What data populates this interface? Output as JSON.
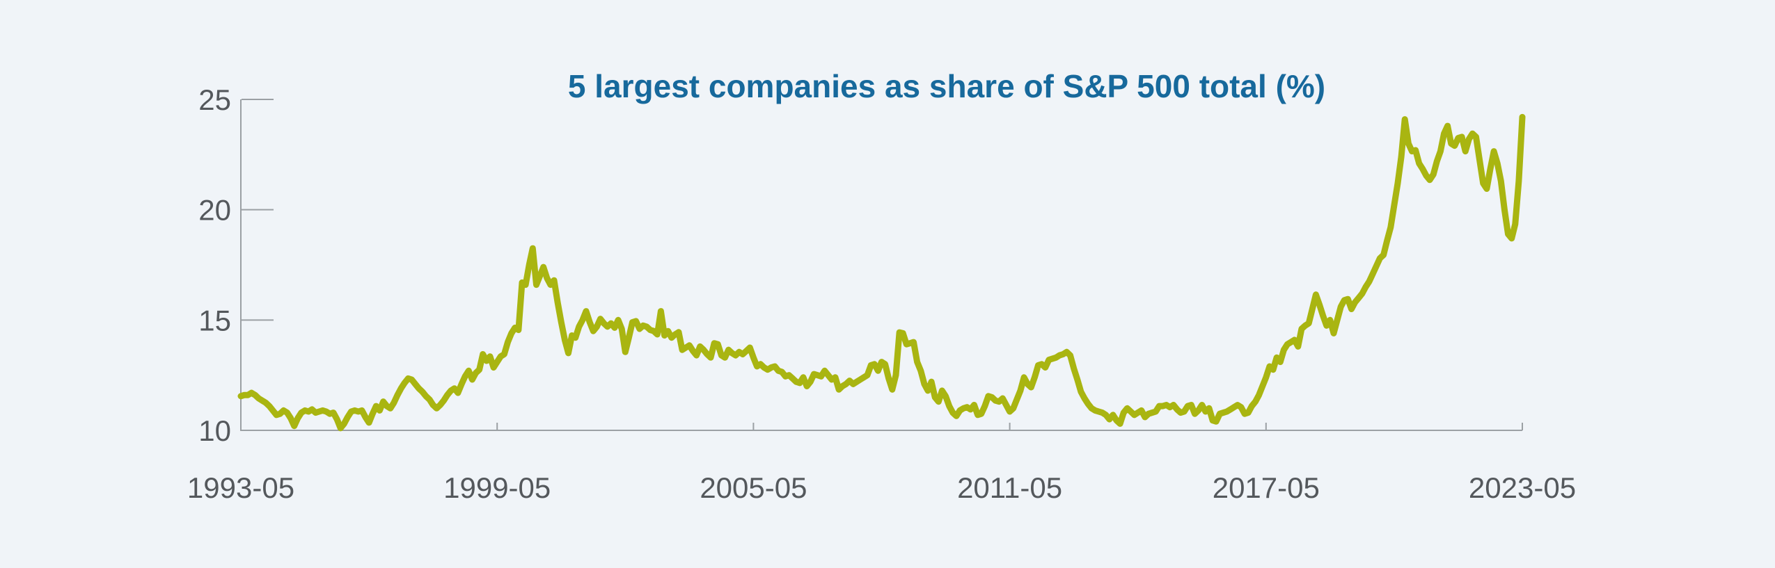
{
  "chart": {
    "title": "5 largest companies as share of S&P 500 total (%)",
    "title_color": "#17699c",
    "background_color": "#f0f4f8",
    "axis_color": "#9ba0a4",
    "tick_label_color": "#54585c",
    "line_color": "#a9b511"
  },
  "chart_data": {
    "type": "line",
    "title": "5 largest companies as share of S&P 500 total (%)",
    "xlabel": "",
    "ylabel": "",
    "x_unit": "month",
    "x_start": "1993-05",
    "x_end": "2023-05",
    "x_tick_labels": [
      "1993-05",
      "1999-05",
      "2005-05",
      "2011-05",
      "2017-05",
      "2023-05"
    ],
    "y_tick_labels": [
      "10",
      "15",
      "20",
      "25"
    ],
    "y_ticks": [
      10,
      15,
      20,
      25
    ],
    "ylim": [
      10,
      25
    ],
    "grid": false,
    "legend_position": "none",
    "series": [
      {
        "name": "top5-share-of-sp500-total-pct",
        "color": "#a9b511",
        "monthly_from": "1993-05",
        "values": [
          11.55,
          11.6,
          11.6,
          11.7,
          11.6,
          11.45,
          11.35,
          11.25,
          11.1,
          10.9,
          10.7,
          10.75,
          10.9,
          10.8,
          10.55,
          10.2,
          10.55,
          10.8,
          10.9,
          10.85,
          10.95,
          10.8,
          10.85,
          10.9,
          10.85,
          10.75,
          10.8,
          10.5,
          10.1,
          10.3,
          10.6,
          10.85,
          10.9,
          10.85,
          10.9,
          10.6,
          10.35,
          10.75,
          11.1,
          10.9,
          11.3,
          11.1,
          11.0,
          11.25,
          11.6,
          11.9,
          12.15,
          12.35,
          12.3,
          12.1,
          11.9,
          11.75,
          11.55,
          11.4,
          11.15,
          11.0,
          11.15,
          11.35,
          11.6,
          11.8,
          11.9,
          11.7,
          12.1,
          12.45,
          12.7,
          12.3,
          12.6,
          12.75,
          13.45,
          13.15,
          13.35,
          12.85,
          13.1,
          13.35,
          13.45,
          14.0,
          14.4,
          14.65,
          14.55,
          16.7,
          16.6,
          17.5,
          18.25,
          16.6,
          17.0,
          17.4,
          16.9,
          16.6,
          16.8,
          15.8,
          14.9,
          14.1,
          13.5,
          14.3,
          14.2,
          14.7,
          15.0,
          15.4,
          14.9,
          14.5,
          14.7,
          15.05,
          14.85,
          14.7,
          14.85,
          14.65,
          15.0,
          14.6,
          13.55,
          14.2,
          14.9,
          14.95,
          14.6,
          14.75,
          14.7,
          14.55,
          14.5,
          14.35,
          15.4,
          14.3,
          14.5,
          14.2,
          14.35,
          14.45,
          13.65,
          13.75,
          13.85,
          13.6,
          13.4,
          13.8,
          13.65,
          13.45,
          13.3,
          13.95,
          13.9,
          13.4,
          13.3,
          13.65,
          13.5,
          13.4,
          13.55,
          13.45,
          13.6,
          13.75,
          13.3,
          12.9,
          13.0,
          12.85,
          12.75,
          12.85,
          12.9,
          12.7,
          12.65,
          12.45,
          12.5,
          12.35,
          12.2,
          12.15,
          12.4,
          12.0,
          12.2,
          12.55,
          12.5,
          12.45,
          12.7,
          12.5,
          12.3,
          12.4,
          11.85,
          12.0,
          12.1,
          12.25,
          12.1,
          12.2,
          12.3,
          12.4,
          12.5,
          12.95,
          13.0,
          12.7,
          13.1,
          13.0,
          12.35,
          11.85,
          12.5,
          14.44,
          14.4,
          13.9,
          13.95,
          14.0,
          13.1,
          12.7,
          12.1,
          11.8,
          12.2,
          11.5,
          11.3,
          11.8,
          11.55,
          11.1,
          10.8,
          10.65,
          10.9,
          11.0,
          11.05,
          10.95,
          11.15,
          10.7,
          10.75,
          11.1,
          11.55,
          11.5,
          11.35,
          11.3,
          11.45,
          11.15,
          10.85,
          11.0,
          11.4,
          11.8,
          12.4,
          12.1,
          11.95,
          12.4,
          12.95,
          13.0,
          12.85,
          13.2,
          13.25,
          13.3,
          13.4,
          13.45,
          13.55,
          13.4,
          12.8,
          12.3,
          11.75,
          11.45,
          11.2,
          11.0,
          10.9,
          10.85,
          10.8,
          10.7,
          10.5,
          10.7,
          10.45,
          10.3,
          10.8,
          11.0,
          10.85,
          10.7,
          10.8,
          10.9,
          10.6,
          10.75,
          10.8,
          10.85,
          11.1,
          11.1,
          11.15,
          11.05,
          11.15,
          10.95,
          10.8,
          10.85,
          11.1,
          11.15,
          10.75,
          10.9,
          11.15,
          10.85,
          11.0,
          10.45,
          10.4,
          10.75,
          10.8,
          10.85,
          10.95,
          11.05,
          11.15,
          11.05,
          10.75,
          10.8,
          11.1,
          11.3,
          11.6,
          12.0,
          12.4,
          12.9,
          12.75,
          13.3,
          13.1,
          13.65,
          13.9,
          14.0,
          14.1,
          13.8,
          14.6,
          14.75,
          14.85,
          15.5,
          16.15,
          15.7,
          15.2,
          14.75,
          15.0,
          14.4,
          15.0,
          15.6,
          15.9,
          15.95,
          15.5,
          15.8,
          16.0,
          16.2,
          16.5,
          16.75,
          17.1,
          17.45,
          17.8,
          17.95,
          18.6,
          19.2,
          20.2,
          21.2,
          22.4,
          24.1,
          23.0,
          22.65,
          22.7,
          22.1,
          21.85,
          21.55,
          21.35,
          21.6,
          22.2,
          22.65,
          23.45,
          23.8,
          23.0,
          22.9,
          23.25,
          23.3,
          22.65,
          23.2,
          23.45,
          23.3,
          22.25,
          21.2,
          20.95,
          21.85,
          22.65,
          22.1,
          21.3,
          20.0,
          18.9,
          18.7,
          19.35,
          21.3,
          24.2
        ]
      }
    ]
  }
}
